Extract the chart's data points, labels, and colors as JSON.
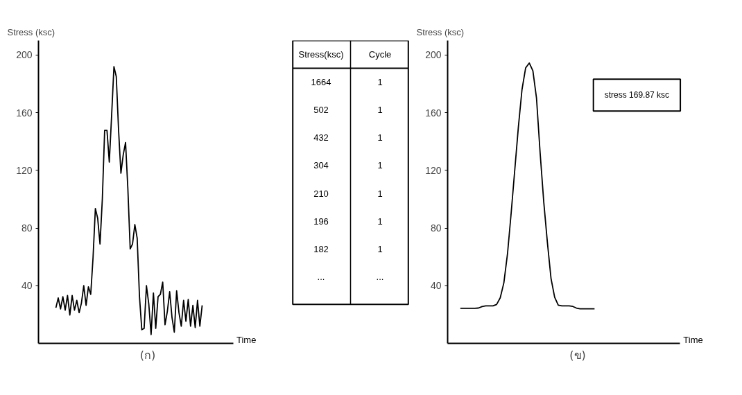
{
  "chart_data": [
    {
      "type": "line",
      "ylabel": "Stress (ksc)",
      "xlabel": "Time",
      "annotations": [
        "(ก)"
      ],
      "tick_labels": "y",
      "grid": false,
      "ylim": [
        0,
        210
      ],
      "yticks": [
        40,
        80,
        120,
        160,
        200
      ],
      "categories": [
        null,
        null,
        null,
        null,
        null,
        null,
        null,
        null,
        null,
        null,
        null,
        null,
        null,
        null,
        null,
        null,
        null,
        null,
        null,
        null,
        null,
        null,
        null,
        null,
        null,
        null,
        null,
        null,
        null,
        null,
        null,
        null,
        null,
        null,
        null,
        null,
        null,
        null,
        null,
        null,
        null,
        null,
        null,
        null,
        null,
        null,
        null,
        null,
        null,
        null,
        null,
        null,
        null,
        null,
        null,
        null,
        null,
        null,
        null,
        null,
        null,
        null,
        null,
        null,
        null,
        null,
        null,
        null,
        null,
        null,
        null,
        null,
        null,
        null,
        null,
        null,
        null,
        null,
        null,
        null,
        null,
        null,
        null,
        null
      ],
      "series": [
        {
          "color": "#000000",
          "values": [
            null,
            null,
            null,
            null,
            null,
            null,
            null,
            24.7,
            31.5,
            23.9,
            32.4,
            23,
            33.2,
            19.6,
            33.2,
            23,
            29.8,
            21.3,
            28,
            40,
            26.4,
            39.2,
            34,
            59.5,
            93.5,
            86.7,
            68.9,
            100,
            147.7,
            147.7,
            125.7,
            158,
            191.9,
            185,
            147.7,
            118,
            130.8,
            139.3,
            107,
            65.5,
            68.9,
            82.4,
            73,
            32.4,
            9.5,
            10.4,
            40,
            27.3,
            6.1,
            34.9,
            10.4,
            32.4,
            34,
            42.5,
            12.9,
            22.2,
            35.8,
            18,
            7.8,
            36.5,
            21.3,
            11.9,
            29.8,
            15.3,
            30.5,
            11.9,
            26.4,
            11,
            29.8,
            11.9,
            26.4,
            null,
            null,
            null,
            null,
            null,
            null,
            null,
            null,
            null,
            null,
            null,
            null,
            null
          ]
        }
      ]
    },
    {
      "type": "other",
      "categories": [
        "Stress(ksc)",
        "Cycle"
      ],
      "cell_labels": [
        [
          "1664",
          "1"
        ],
        [
          "502",
          "1"
        ],
        [
          "432",
          "1"
        ],
        [
          "304",
          "1"
        ],
        [
          "210",
          "1"
        ],
        [
          "196",
          "1"
        ],
        [
          "182",
          "1"
        ],
        [
          "...",
          "..."
        ]
      ]
    },
    {
      "type": "line",
      "ylabel": "Stress (ksc)",
      "xlabel": "Time",
      "annotations": [
        "stress 169.87 ksc",
        "(ข)"
      ],
      "tick_labels": "y",
      "grid": false,
      "ylim": [
        0,
        210
      ],
      "yticks": [
        40,
        80,
        120,
        160,
        200
      ],
      "categories": [
        null,
        null,
        null,
        null,
        null,
        null,
        null,
        null,
        null,
        null,
        null,
        null,
        null,
        null,
        null,
        null,
        null,
        null,
        null,
        null,
        null,
        null,
        null,
        null,
        null,
        null,
        null,
        null,
        null,
        null,
        null,
        null,
        null,
        null,
        null,
        null,
        null,
        null,
        null,
        null,
        null,
        null,
        null,
        null,
        null,
        null,
        null,
        null,
        null,
        null,
        null,
        null,
        null,
        null,
        null,
        null,
        null,
        null,
        null,
        null,
        null,
        null,
        null,
        null
      ],
      "series": [
        {
          "color": "#000000",
          "values": [
            null,
            null,
            null,
            24.3,
            24.3,
            24.3,
            24.3,
            24.3,
            24.5,
            25.5,
            26,
            26,
            26,
            27,
            31.6,
            42,
            62,
            90,
            120,
            150,
            176,
            191,
            194.4,
            189,
            170,
            132,
            98,
            70,
            45,
            32,
            26.5,
            26,
            26,
            26,
            25.6,
            24.5,
            24,
            24,
            24,
            24,
            24,
            null,
            null,
            null,
            null,
            null,
            null,
            null,
            null,
            null,
            null,
            null,
            null,
            null,
            null,
            null,
            null,
            null,
            null,
            null,
            null,
            null,
            null,
            null
          ]
        }
      ]
    }
  ]
}
